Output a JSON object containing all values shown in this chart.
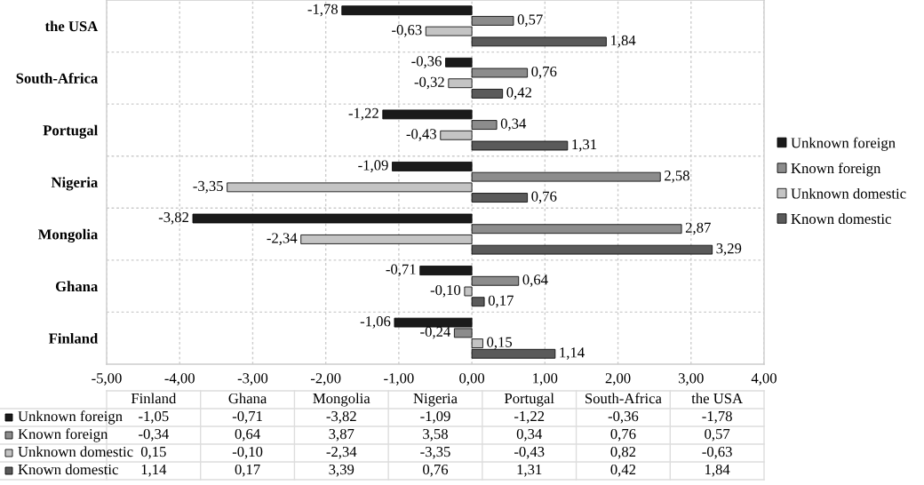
{
  "chart_data": {
    "type": "bar",
    "orientation": "horizontal",
    "categories": [
      "the USA",
      "South-Africa",
      "Portugal",
      "Nigeria",
      "Mongolia",
      "Ghana",
      "Finland"
    ],
    "series": [
      {
        "name": "Unknown foreign",
        "color": "#1a1a1a",
        "values": [
          -1.78,
          -0.36,
          -1.22,
          -1.09,
          -3.82,
          -0.71,
          -1.06
        ],
        "value_labels": [
          "-1,78",
          "-0,36",
          "-1,22",
          "-1,09",
          "-3,82",
          "-0,71",
          "-1,06"
        ]
      },
      {
        "name": "Known foreign",
        "color": "#8c8c8c",
        "values": [
          0.57,
          0.76,
          0.34,
          2.58,
          2.87,
          0.64,
          -0.24
        ],
        "value_labels": [
          "0,57",
          "0,76",
          "0,34",
          "2,58",
          "2,87",
          "0,64",
          "-0,24"
        ]
      },
      {
        "name": "Unknown domestic",
        "color": "#c4c4c4",
        "values": [
          -0.63,
          -0.32,
          -0.43,
          -3.35,
          -2.34,
          -0.1,
          0.15
        ],
        "value_labels": [
          "-0,63",
          "-0,32",
          "-0,43",
          "-3,35",
          "-2,34",
          "-0,10",
          "0,15"
        ]
      },
      {
        "name": "Known domestic",
        "color": "#5a5a5a",
        "values": [
          1.84,
          0.42,
          1.31,
          0.76,
          3.29,
          0.17,
          1.14
        ],
        "value_labels": [
          "1,84",
          "0,42",
          "1,31",
          "0,76",
          "3,29",
          "0,17",
          "1,14"
        ]
      }
    ],
    "xlim": [
      -5,
      4
    ],
    "xticks": [
      {
        "value": -5,
        "label": "-5,00"
      },
      {
        "value": -4,
        "label": "-4,00"
      },
      {
        "value": -3,
        "label": "-3,00"
      },
      {
        "value": -2,
        "label": "-2,00"
      },
      {
        "value": -1,
        "label": "-1,00"
      },
      {
        "value": 0,
        "label": "0,00"
      },
      {
        "value": 1,
        "label": "1,00"
      },
      {
        "value": 2,
        "label": "2,00"
      },
      {
        "value": 3,
        "label": "3,00"
      },
      {
        "value": 4,
        "label": "4,00"
      }
    ],
    "grid": true,
    "legend": "right",
    "annotations": [
      "Finland",
      "Ghana",
      "Mongolia",
      "Nigeria",
      "Portugal",
      "South-Africa",
      "the USA",
      "-1,05",
      "-0,71",
      "-3,82",
      "-1,09",
      "-1,22",
      "-0,36",
      "-1,78",
      "-0,34",
      "0,64",
      "3,87",
      "3,58",
      "0,34",
      "0,76",
      "0,57",
      "0,15",
      "-0,10",
      "-2,34",
      "-3,35",
      "-0,43",
      "0,82",
      "-0,63",
      "1,14",
      "0,17",
      "3,39",
      "0,76",
      "1,31",
      "0,42",
      "1,84"
    ]
  }
}
